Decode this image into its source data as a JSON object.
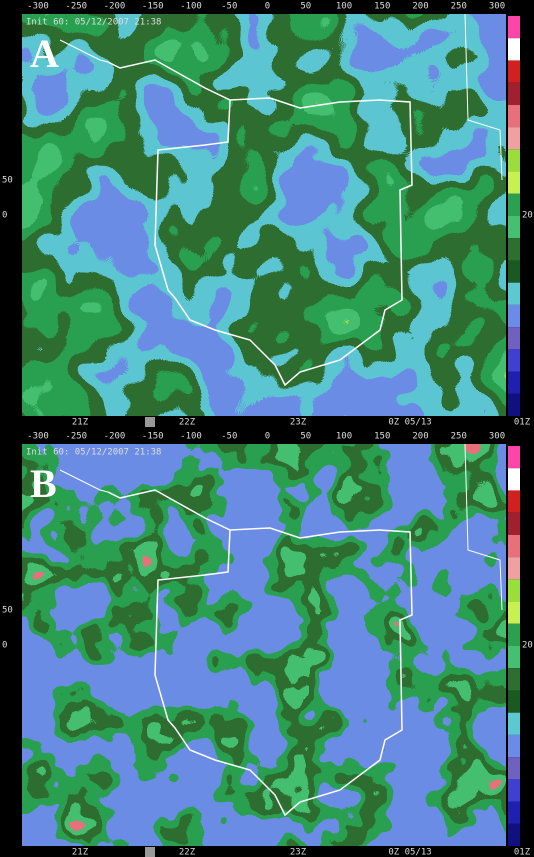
{
  "panels": [
    {
      "label": "A",
      "init": "Init 60: 05/12/2007 21:38",
      "x_ticks": [
        -300,
        -250,
        -200,
        -150,
        -100,
        -50,
        0,
        50,
        100,
        150,
        200,
        250,
        300
      ],
      "y_ticks": [
        50,
        0
      ],
      "times": [
        "21Z",
        "22Z",
        "23Z",
        "0Z 05/13",
        "01Z"
      ],
      "colorbar_label": "20"
    },
    {
      "label": "B",
      "init": "Init 60: 05/12/2007 21:38",
      "x_ticks": [
        -300,
        -250,
        -200,
        -150,
        -100,
        -50,
        0,
        50,
        100,
        150,
        200,
        250,
        300
      ],
      "y_ticks": [
        50,
        0
      ],
      "times": [
        "21Z",
        "22Z",
        "23Z",
        "0Z 05/13",
        "01Z"
      ],
      "colorbar_label": "20"
    }
  ]
}
